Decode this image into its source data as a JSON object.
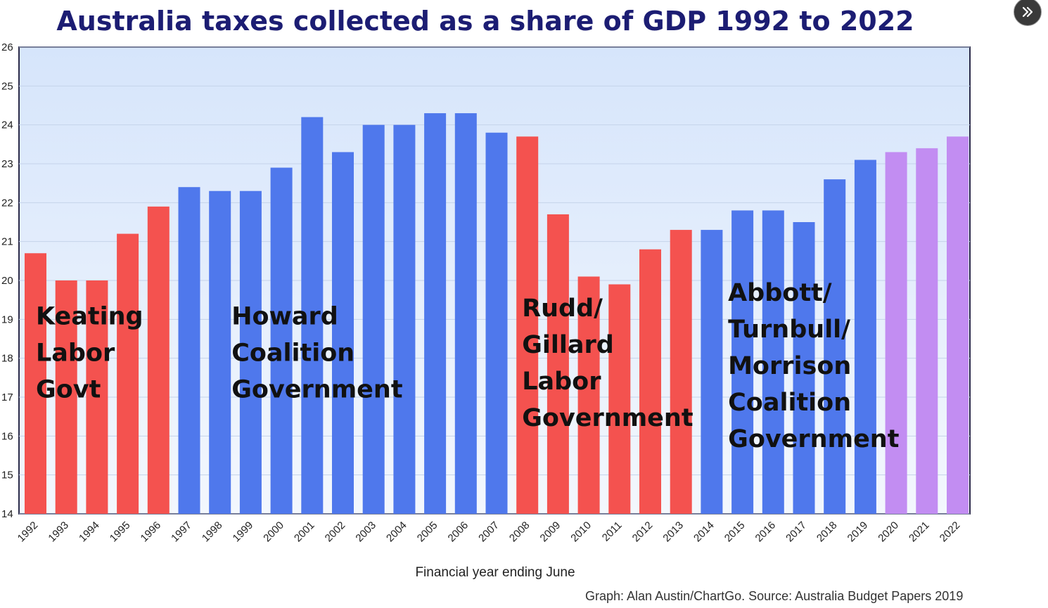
{
  "header": {
    "title": "Australia taxes collected as a share of GDP 1992 to 2022"
  },
  "controls": {
    "next_icon": "double-chevron-right-icon"
  },
  "source": "Graph: Alan Austin/ChartGo. Source: Australia Budget Papers 2019",
  "colors": {
    "labor": "#f4524f",
    "coalition": "#4f78ec",
    "forecast": "#c28df2",
    "plot_bg_top": "#dbe8fb",
    "plot_bg_bottom": "#f2f6fd",
    "title": "#1c1d73"
  },
  "chart_data": {
    "type": "bar",
    "title": "Australia taxes collected as a share of GDP 1992 to 2022",
    "xlabel": "Financial year ending June",
    "ylabel": "",
    "ylim": [
      14,
      26
    ],
    "yticks": [
      "14",
      "15",
      "16",
      "17",
      "18",
      "19",
      "20",
      "21",
      "22",
      "23",
      "24",
      "25",
      "26"
    ],
    "grid": true,
    "categories": [
      "1992",
      "1993",
      "1994",
      "1995",
      "1996",
      "1997",
      "1998",
      "1999",
      "2000",
      "2001",
      "2002",
      "2003",
      "2004",
      "2005",
      "2006",
      "2007",
      "2008",
      "2009",
      "2010",
      "2011",
      "2012",
      "2013",
      "2014",
      "2015",
      "2016",
      "2017",
      "2018",
      "2019",
      "2020",
      "2021",
      "2022"
    ],
    "values": [
      20.7,
      20.0,
      20.0,
      21.2,
      21.9,
      22.4,
      22.3,
      22.3,
      22.9,
      24.2,
      23.3,
      24.0,
      24.0,
      24.3,
      24.3,
      23.8,
      23.7,
      21.7,
      20.1,
      19.9,
      20.8,
      21.3,
      21.3,
      21.8,
      21.8,
      21.5,
      22.6,
      23.1,
      23.3,
      23.4,
      23.7
    ],
    "groups": [
      "labor",
      "labor",
      "labor",
      "labor",
      "labor",
      "coalition",
      "coalition",
      "coalition",
      "coalition",
      "coalition",
      "coalition",
      "coalition",
      "coalition",
      "coalition",
      "coalition",
      "coalition",
      "labor",
      "labor",
      "labor",
      "labor",
      "labor",
      "labor",
      "coalition",
      "coalition",
      "coalition",
      "coalition",
      "coalition",
      "coalition",
      "forecast",
      "forecast",
      "forecast"
    ],
    "annotations": [
      {
        "name": "keating",
        "lines": [
          "Keating",
          "Labor",
          "Govt"
        ],
        "start_category": "1992",
        "top_value": 19.2
      },
      {
        "name": "howard",
        "lines": [
          "Howard",
          "Coalition",
          "Government"
        ],
        "start_category": "1998",
        "top_value": 19.2
      },
      {
        "name": "rudd-gillard",
        "lines": [
          "Rudd/",
          "Gillard",
          "Labor",
          "Government"
        ],
        "start_category": "2008",
        "top_value": 19.4
      },
      {
        "name": "abbott-turnbull-morrison",
        "lines": [
          "Abbott/",
          "Turnbull/",
          "Morrison",
          "Coalition",
          "Government"
        ],
        "start_category": "2015",
        "top_value": 19.8
      }
    ]
  }
}
